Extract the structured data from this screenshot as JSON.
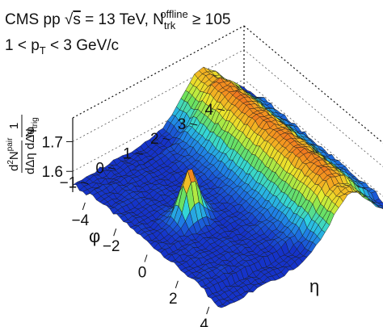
{
  "chart_data": {
    "type": "surface",
    "title_line1": {
      "prefix": "CMS pp ",
      "sqrt_symbol": "√",
      "sqrt_var": "s",
      "middle": " = 13 TeV, N",
      "sub": "trk",
      "sup": "offline",
      "suffix": " ≥ 105"
    },
    "title_line2": {
      "prefix": "1 < p",
      "sub": "T",
      "suffix": " < 3 GeV/c"
    },
    "zlabel": {
      "lead": "1",
      "lead_den_N": "N",
      "lead_den_sub": "trig",
      "num_d": "d",
      "num_exp": "2",
      "num_N": "N",
      "num_sup": "pair",
      "den": "dΔη dΔφ"
    },
    "xlabel": "η",
    "ylabel": "φ",
    "x_ticks": [
      "−4",
      "−2",
      "0",
      "2",
      "4"
    ],
    "x_tick_values": [
      -4,
      -2,
      0,
      2,
      4
    ],
    "y_ticks": [
      "−1",
      "0",
      "1",
      "2",
      "3",
      "4"
    ],
    "y_tick_values": [
      -1,
      0,
      1,
      2,
      3,
      4
    ],
    "z_ticks": [
      "1.6",
      "1.7"
    ],
    "z_tick_values": [
      1.6,
      1.7
    ],
    "xlim": [
      -4.8,
      4.8
    ],
    "ylim": [
      -1.57,
      4.71
    ],
    "zlim": [
      1.53,
      1.78
    ],
    "model": {
      "ridge_center_phi": 3.14,
      "near_side_peak_eta": 0.0,
      "near_side_peak_phi": 0.0,
      "baseline_min": 1.575,
      "away_side_max": 1.725,
      "near_side_peak_max": 1.745
    },
    "colormap": [
      "#1533c9",
      "#1f7fe5",
      "#2fd4df",
      "#6ee25c",
      "#e8ee2e",
      "#f5a21f",
      "#e5271e"
    ]
  }
}
